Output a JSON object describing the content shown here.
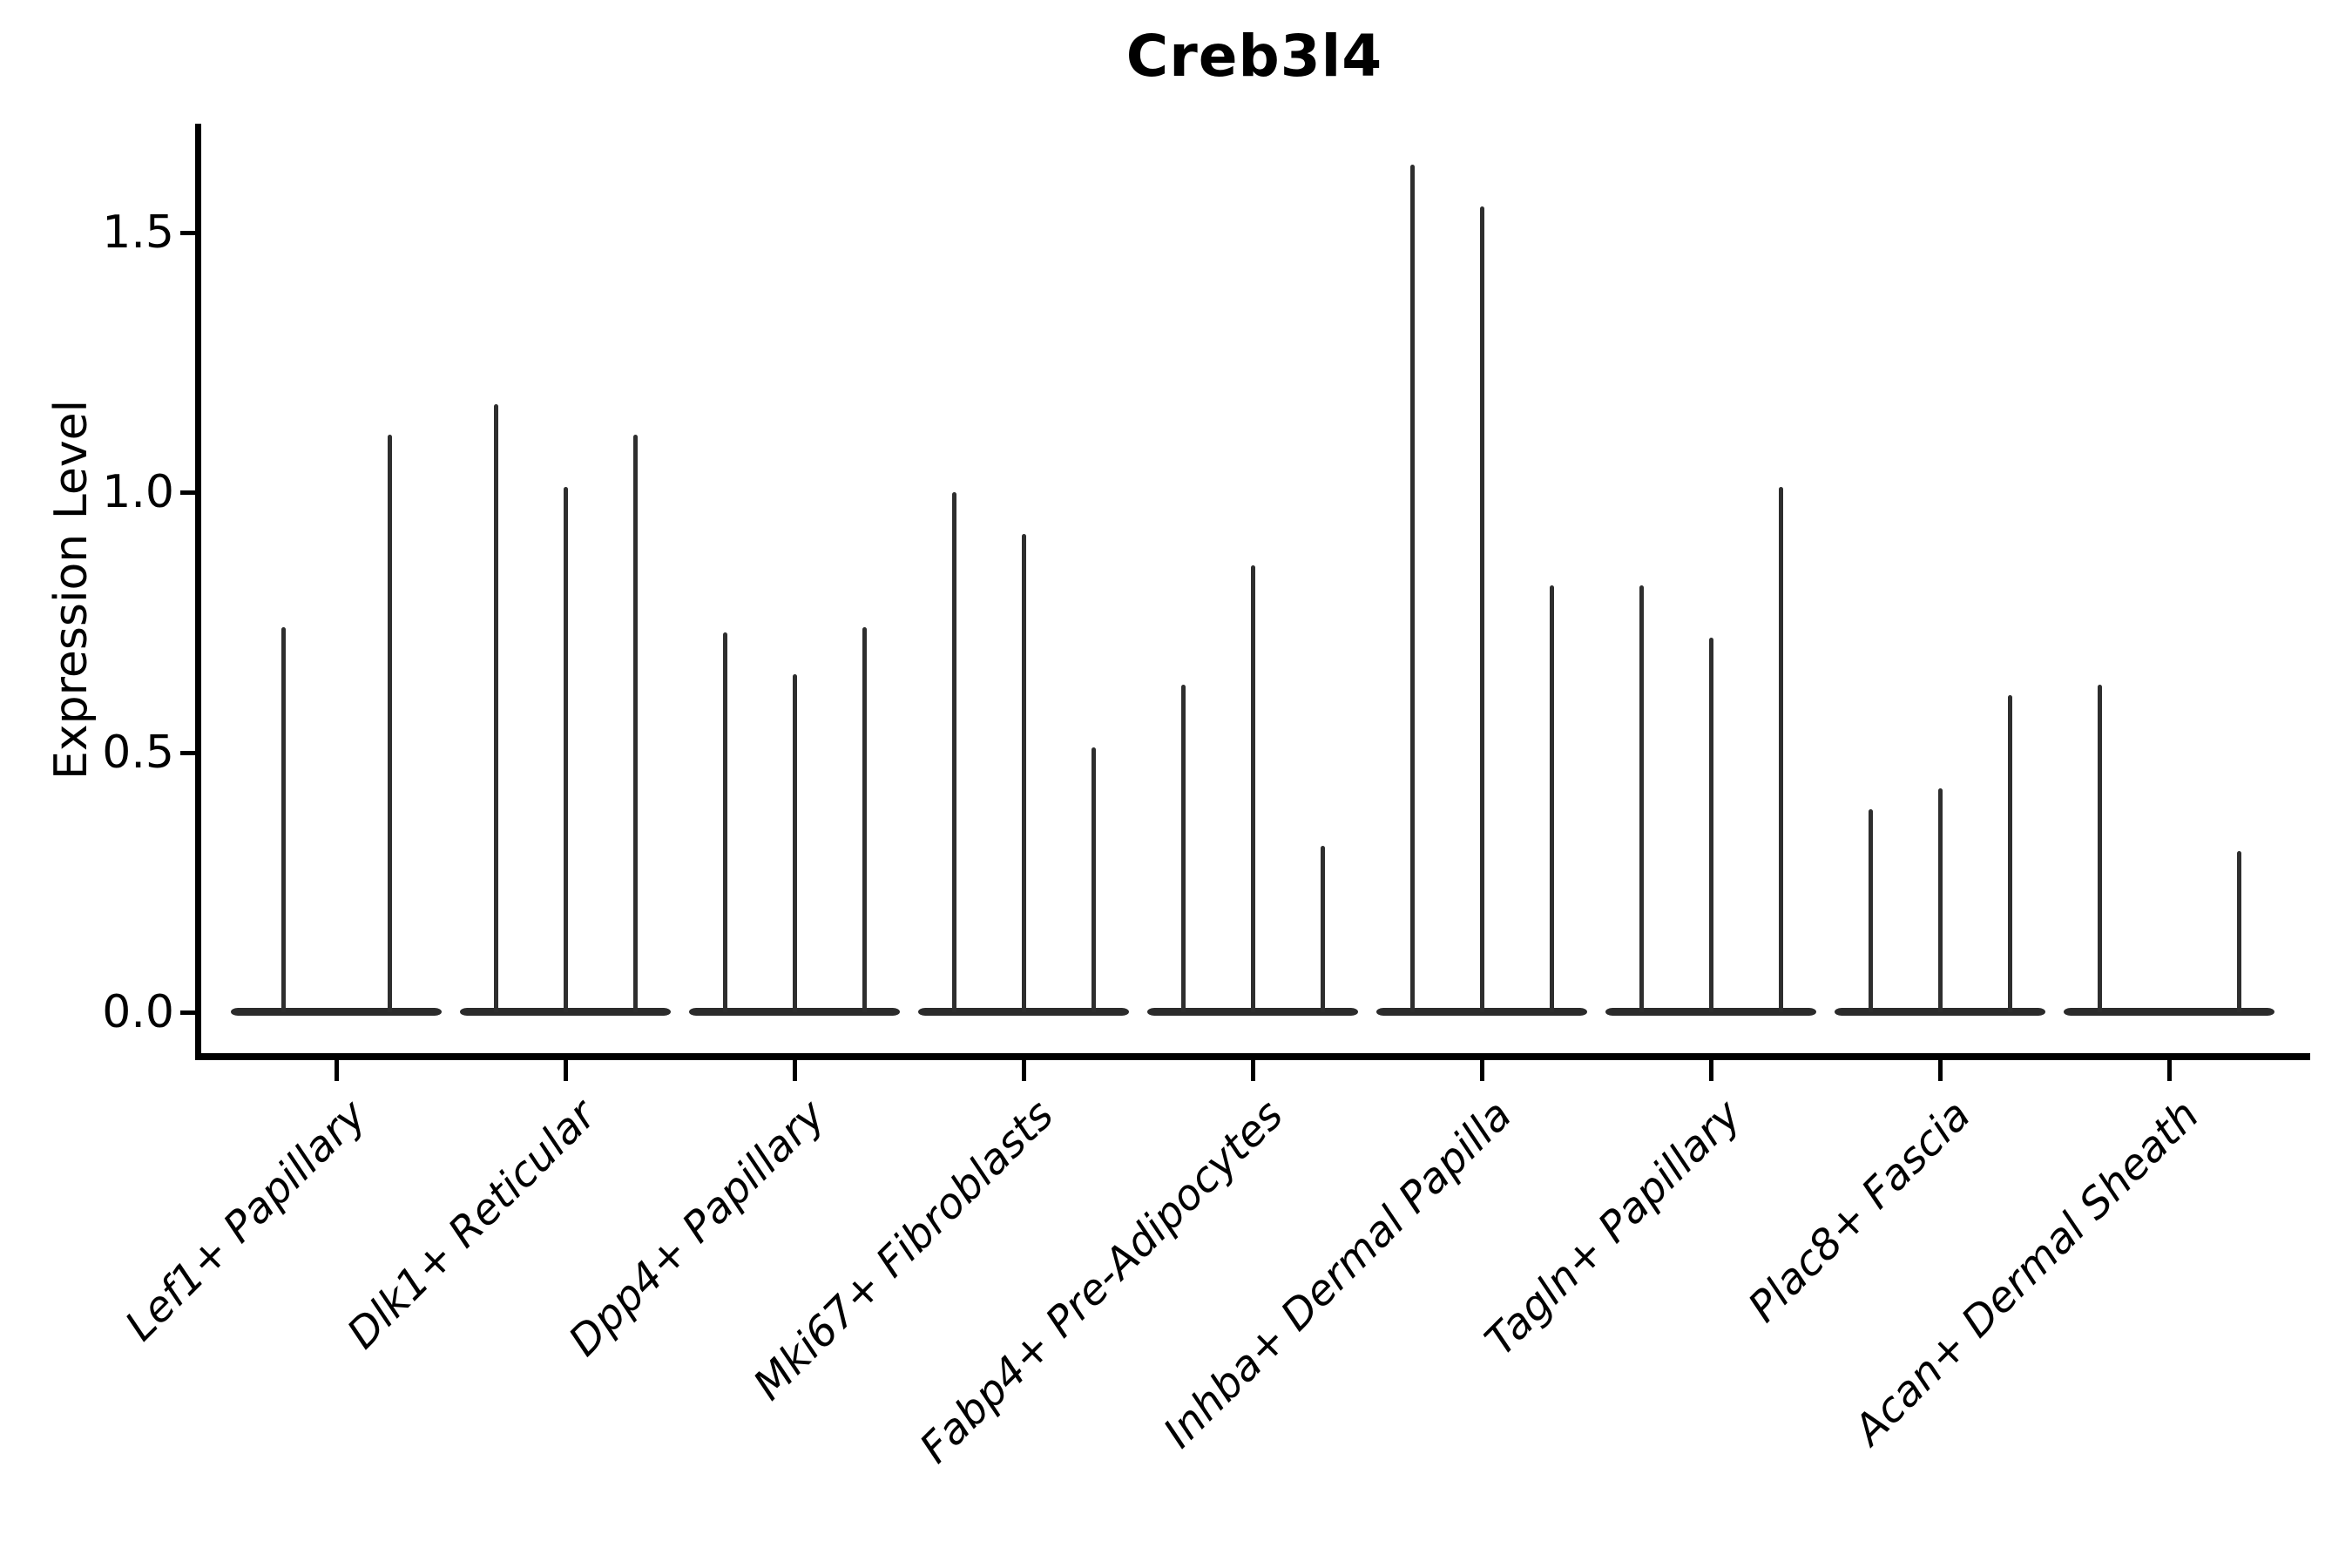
{
  "chart_data": {
    "type": "violin",
    "title": "Creb3l4",
    "ylabel": "Expression Level",
    "yticks": [
      "0.0",
      "0.5",
      "1.0",
      "1.5"
    ],
    "ytick_values": [
      0,
      0.5,
      1.0,
      1.5
    ],
    "ylim": [
      -0.08,
      1.71
    ],
    "grid": false,
    "legend": false,
    "background": "#ffffff",
    "colors": {
      "violin": "#2e2e2e",
      "axis": "#000000",
      "text": "#000000"
    },
    "note": "Collapsed violins: each violin is a flat body at 0 with a thin spike whose top is the max expression (peak). dx is the violin offset in px from the category center.",
    "groups": [
      {
        "label": "Lef1+ Papillary",
        "violins": [
          {
            "dx": -61,
            "peak": 0.74
          },
          {
            "dx": 61,
            "peak": 1.11
          }
        ]
      },
      {
        "label": "Dlk1+ Reticular",
        "violins": [
          {
            "dx": -80,
            "peak": 1.17
          },
          {
            "dx": 0,
            "peak": 1.01
          },
          {
            "dx": 80,
            "peak": 1.11
          }
        ]
      },
      {
        "label": "Dpp4+ Papillary",
        "violins": [
          {
            "dx": -80,
            "peak": 0.73
          },
          {
            "dx": 0,
            "peak": 0.65
          },
          {
            "dx": 80,
            "peak": 0.74
          }
        ]
      },
      {
        "label": "Mki67+ Fibroblasts",
        "violins": [
          {
            "dx": -80,
            "peak": 1.0
          },
          {
            "dx": 0,
            "peak": 0.92
          },
          {
            "dx": 80,
            "peak": 0.51
          }
        ]
      },
      {
        "label": "Fabp4+ Pre-Adipocytes",
        "violins": [
          {
            "dx": -80,
            "peak": 0.63
          },
          {
            "dx": 0,
            "peak": 0.86
          },
          {
            "dx": 80,
            "peak": 0.32
          }
        ]
      },
      {
        "label": "Inhba+ Dermal Papilla",
        "violins": [
          {
            "dx": -80,
            "peak": 1.63
          },
          {
            "dx": 0,
            "peak": 1.55
          },
          {
            "dx": 80,
            "peak": 0.82
          }
        ]
      },
      {
        "label": "Tagln+ Papillary",
        "violins": [
          {
            "dx": -80,
            "peak": 0.82
          },
          {
            "dx": 0,
            "peak": 0.72
          },
          {
            "dx": 80,
            "peak": 1.01
          }
        ]
      },
      {
        "label": "Plac8+ Fascia",
        "violins": [
          {
            "dx": -80,
            "peak": 0.39
          },
          {
            "dx": 0,
            "peak": 0.43
          },
          {
            "dx": 80,
            "peak": 0.61
          }
        ]
      },
      {
        "label": "Acan+ Dermal Sheath",
        "violins": [
          {
            "dx": -80,
            "peak": 0.63
          },
          {
            "dx": 80,
            "peak": 0.31
          }
        ]
      }
    ]
  }
}
